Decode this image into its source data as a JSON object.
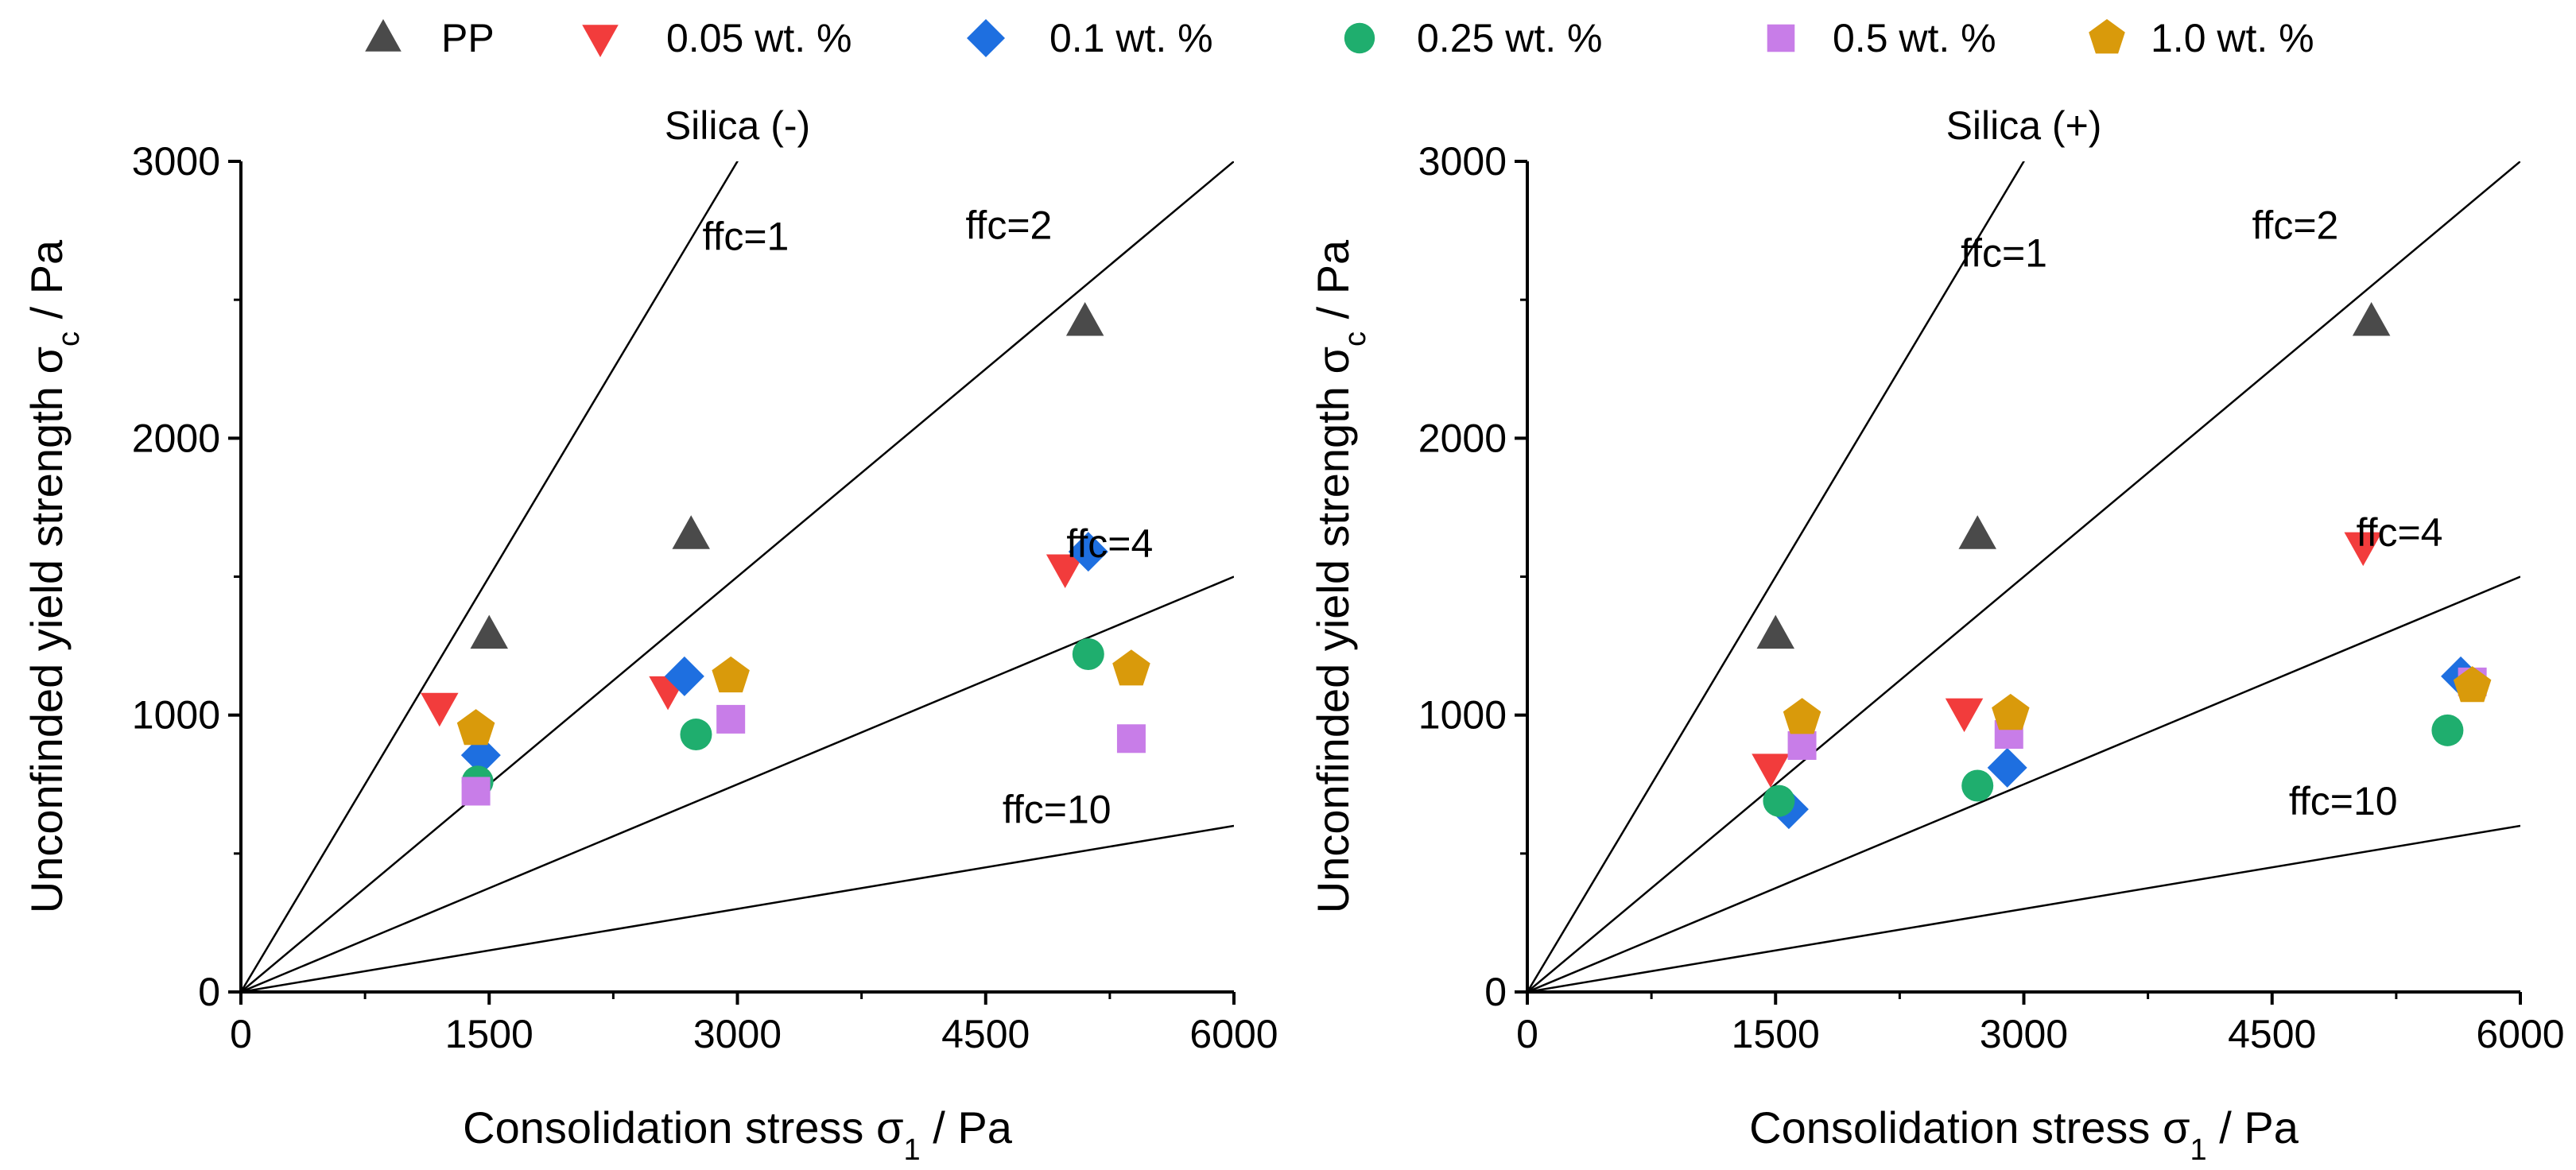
{
  "chart_data": [
    {
      "type": "scatter",
      "title": "Silica (-)",
      "xlabel": "Consolidation stress",
      "xlabel_symbol": "σ",
      "xlabel_sub": "1",
      "xlabel_unit": " / Pa",
      "ylabel": "Unconfinded yield strength",
      "ylabel_symbol": "σ",
      "ylabel_sub": "c",
      "ylabel_unit": " / Pa",
      "xlim": [
        0,
        6000
      ],
      "ylim": [
        0,
        3000
      ],
      "xticks": [
        0,
        1500,
        3000,
        4500,
        6000
      ],
      "yticks": [
        0,
        1000,
        2000,
        3000
      ],
      "xtick_labels": [
        "0",
        "1500",
        "3000",
        "4500",
        "6000"
      ],
      "ytick_labels": [
        "0",
        "1000",
        "2000",
        "3000"
      ],
      "ffc_lines": [
        {
          "ffc": 1,
          "label": "ffc=1",
          "label_x": 3050,
          "label_y": 2680
        },
        {
          "ffc": 2,
          "label": "ffc=2",
          "label_x": 4640,
          "label_y": 2720
        },
        {
          "ffc": 4,
          "label": "ffc=4",
          "label_x": 5250,
          "label_y": 1570
        },
        {
          "ffc": 10,
          "label": "ffc=10",
          "label_x": 4930,
          "label_y": 610
        }
      ],
      "series": [
        {
          "name": "PP",
          "x": [
            1500,
            2720,
            5100
          ],
          "y": [
            1290,
            1650,
            2420
          ]
        },
        {
          "name": "0.05 wt. %",
          "x": [
            1200,
            2580,
            4980
          ],
          "y": [
            1030,
            1090,
            1530
          ]
        },
        {
          "name": "0.1 wt. %",
          "x": [
            1450,
            2680,
            5120
          ],
          "y": [
            855,
            1140,
            1590
          ]
        },
        {
          "name": "0.25 wt. %",
          "x": [
            1430,
            2750,
            5120
          ],
          "y": [
            760,
            930,
            1220
          ]
        },
        {
          "name": "0.5 wt. %",
          "x": [
            1420,
            2960,
            5380
          ],
          "y": [
            725,
            985,
            915
          ]
        },
        {
          "name": "1.0 wt. %",
          "x": [
            1420,
            2960,
            5380
          ],
          "y": [
            950,
            1140,
            1165
          ]
        }
      ]
    },
    {
      "type": "scatter",
      "title": "Silica (+)",
      "xlabel": "Consolidation stress",
      "xlabel_symbol": "σ",
      "xlabel_sub": "1",
      "xlabel_unit": " / Pa",
      "ylabel": "Unconfinded yield strength",
      "ylabel_symbol": "σ",
      "ylabel_sub": "c",
      "ylabel_unit": " / Pa",
      "xlim": [
        0,
        6000
      ],
      "ylim": [
        0,
        3000
      ],
      "xticks": [
        0,
        1500,
        3000,
        4500,
        6000
      ],
      "yticks": [
        0,
        1000,
        2000,
        3000
      ],
      "xtick_labels": [
        "0",
        "1500",
        "3000",
        "4500",
        "6000"
      ],
      "ytick_labels": [
        "0",
        "1000",
        "2000",
        "3000"
      ],
      "ffc_lines": [
        {
          "ffc": 1,
          "label": "ffc=1",
          "label_x": 2880,
          "label_y": 2620
        },
        {
          "ffc": 2,
          "label": "ffc=2",
          "label_x": 4640,
          "label_y": 2720
        },
        {
          "ffc": 4,
          "label": "ffc=4",
          "label_x": 5270,
          "label_y": 1610
        },
        {
          "ffc": 10,
          "label": "ffc=10",
          "label_x": 4930,
          "label_y": 640
        }
      ],
      "series": [
        {
          "name": "PP",
          "x": [
            1500,
            2720,
            5100
          ],
          "y": [
            1290,
            1650,
            2420
          ]
        },
        {
          "name": "0.05 wt. %",
          "x": [
            1470,
            2640,
            5050
          ],
          "y": [
            810,
            1010,
            1610
          ]
        },
        {
          "name": "0.1 wt. %",
          "x": [
            1580,
            2900,
            5640
          ],
          "y": [
            660,
            810,
            1140
          ]
        },
        {
          "name": "0.25 wt. %",
          "x": [
            1520,
            2720,
            5560
          ],
          "y": [
            690,
            745,
            945
          ]
        },
        {
          "name": "0.5 wt. %",
          "x": [
            1660,
            2910,
            5710
          ],
          "y": [
            890,
            930,
            1120
          ]
        },
        {
          "name": "1.0 wt. %",
          "x": [
            1660,
            2920,
            5710
          ],
          "y": [
            990,
            1005,
            1105
          ]
        }
      ]
    }
  ],
  "legend": {
    "placement": "top",
    "items": [
      {
        "label": "PP",
        "marker": "triangle-up",
        "color": "#4a4a4a"
      },
      {
        "label": "0.05 wt. %",
        "marker": "triangle-down",
        "color": "#f23c3c"
      },
      {
        "label": "0.1 wt. %",
        "marker": "diamond",
        "color": "#1e6fe0"
      },
      {
        "label": "0.25 wt. %",
        "marker": "circle",
        "color": "#1fae6e"
      },
      {
        "label": "0.5 wt. %",
        "marker": "square",
        "color": "#c87de8"
      },
      {
        "label": "1.0 wt. %",
        "marker": "pentagon",
        "color": "#d99a0b"
      }
    ]
  }
}
